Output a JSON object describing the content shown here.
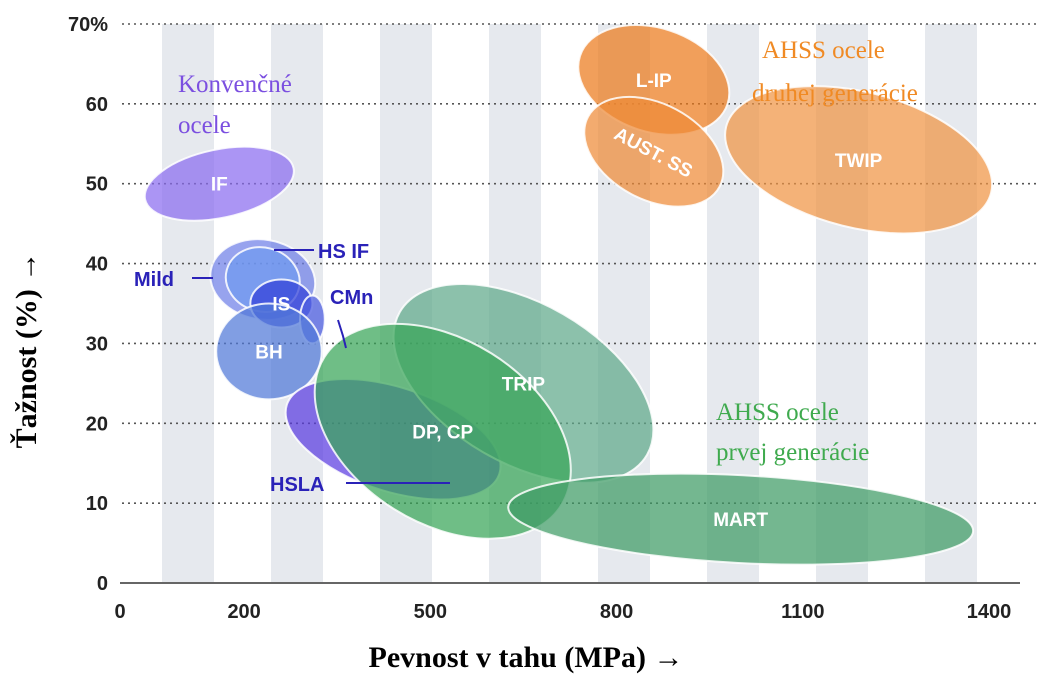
{
  "chart_data": {
    "type": "scatter",
    "title": "",
    "xlabel": "Pevnost v tahu (MPa) →",
    "ylabel": "Ťažnost (%) →",
    "xlim": [
      0,
      1450
    ],
    "ylim": [
      0,
      70
    ],
    "x_ticks": [
      "0",
      "200",
      "500",
      "800",
      "1100",
      "1400"
    ],
    "y_ticks": [
      "0",
      "10",
      "20",
      "30",
      "40",
      "50",
      "60",
      "70%"
    ],
    "grid": true,
    "legend": "none",
    "groups": [
      {
        "label_lines": [
          "Konvenčné",
          "ocele"
        ],
        "color": "#7b4fe0"
      },
      {
        "label_lines": [
          "AHSS ocele",
          "prvej generácie"
        ],
        "color": "#3faa4e"
      },
      {
        "label_lines": [
          "AHSS ocele",
          "druhej generácie"
        ],
        "color": "#f08a24"
      }
    ],
    "regions": [
      {
        "label": "IF",
        "center": [
          160,
          50
        ],
        "span_x": [
          120,
          230
        ],
        "span_y": [
          38,
          57
        ],
        "color": "#8a6cf0",
        "group": 0
      },
      {
        "label": "Mild",
        "center": [
          230,
          38
        ],
        "span_x": [
          150,
          320
        ],
        "span_y": [
          32,
          42
        ],
        "color": "#6f80e8",
        "group": 0
      },
      {
        "label": "HS IF",
        "center": [
          230,
          38
        ],
        "span_x": [
          170,
          290
        ],
        "span_y": [
          34,
          42
        ],
        "color": "#6f9af0",
        "group": 0
      },
      {
        "label": "IS",
        "center": [
          260,
          35
        ],
        "span_x": [
          200,
          300
        ],
        "span_y": [
          32,
          38
        ],
        "color": "#3240d8",
        "group": 0
      },
      {
        "label": "CMn",
        "center": [
          310,
          33
        ],
        "span_x": [
          280,
          320
        ],
        "span_y": [
          30,
          36
        ],
        "color": "#4a5ae0",
        "group": 0
      },
      {
        "label": "BH",
        "center": [
          240,
          29
        ],
        "span_x": [
          160,
          330
        ],
        "span_y": [
          24,
          36
        ],
        "color": "#5078d8",
        "group": 0
      },
      {
        "label": "HSLA",
        "center": [
          440,
          18
        ],
        "span_x": [
          260,
          620
        ],
        "span_y": [
          11,
          24
        ],
        "color": "#5a3be0",
        "group": 0
      },
      {
        "label": "TRIP",
        "center": [
          650,
          25
        ],
        "span_x": [
          420,
          880
        ],
        "span_y": [
          12,
          32
        ],
        "color": "#5fa98a",
        "group": 1
      },
      {
        "label": "DP, CP",
        "center": [
          520,
          19
        ],
        "span_x": [
          330,
          780
        ],
        "span_y": [
          6,
          29
        ],
        "color": "#37a558",
        "group": 1
      },
      {
        "label": "MART",
        "center": [
          1000,
          8
        ],
        "span_x": [
          640,
          1390
        ],
        "span_y": [
          4,
          15
        ],
        "color": "#3e9b65",
        "group": 1
      },
      {
        "label": "L-IP",
        "center": [
          860,
          63
        ],
        "span_x": [
          750,
          1000
        ],
        "span_y": [
          56,
          69
        ],
        "color": "#ec7a1c",
        "group": 2
      },
      {
        "label": "AUST. SS",
        "center": [
          860,
          54
        ],
        "span_x": [
          740,
          980
        ],
        "span_y": [
          48,
          60
        ],
        "color": "#ee8a38",
        "group": 2
      },
      {
        "label": "TWIP",
        "center": [
          1190,
          53
        ],
        "span_x": [
          980,
          1420
        ],
        "span_y": [
          45,
          62
        ],
        "color": "#f09444",
        "group": 2
      }
    ],
    "callouts": [
      "HS IF",
      "Mild",
      "CMn",
      "HSLA"
    ]
  }
}
